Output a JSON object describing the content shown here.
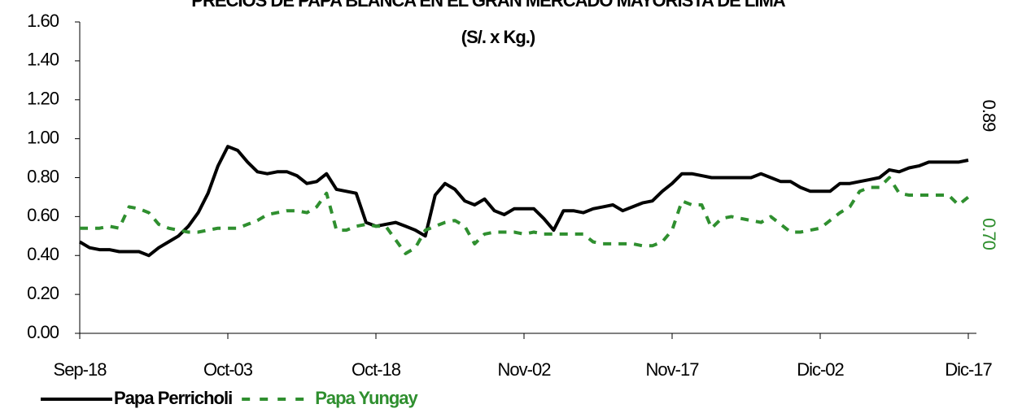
{
  "chart_data": {
    "type": "line",
    "title": "PRECIOS DE PAPA BLANCA EN EL GRAN MERCADO MAYORISTA DE LIMA",
    "subtitle": "(S/. x Kg.)",
    "categories": [
      "Sep-18",
      null,
      null,
      null,
      null,
      null,
      null,
      null,
      null,
      null,
      null,
      null,
      null,
      null,
      null,
      "Oct-03",
      null,
      null,
      null,
      null,
      null,
      null,
      null,
      null,
      null,
      null,
      null,
      null,
      null,
      null,
      "Oct-18",
      null,
      null,
      null,
      null,
      null,
      null,
      null,
      null,
      null,
      null,
      null,
      null,
      null,
      null,
      "Nov-02",
      null,
      null,
      null,
      null,
      null,
      null,
      null,
      null,
      null,
      null,
      null,
      null,
      null,
      null,
      "Nov-17",
      null,
      null,
      null,
      null,
      null,
      null,
      null,
      null,
      null,
      null,
      null,
      null,
      null,
      null,
      "Dic-02",
      null,
      null,
      null,
      null,
      null,
      null,
      null,
      null,
      null,
      null,
      null,
      null,
      null,
      null,
      "Dic-17"
    ],
    "series": [
      {
        "name": "Papa Perricholi",
        "color": "#000000",
        "dash": false,
        "values": [
          0.47,
          0.44,
          0.43,
          0.43,
          0.42,
          0.42,
          0.42,
          0.4,
          0.44,
          0.47,
          0.5,
          0.55,
          0.62,
          0.72,
          0.86,
          0.96,
          0.94,
          0.88,
          0.83,
          0.82,
          0.83,
          0.83,
          0.81,
          0.77,
          0.78,
          0.82,
          0.74,
          0.73,
          0.72,
          0.57,
          0.55,
          0.56,
          0.57,
          0.55,
          0.53,
          0.5,
          0.71,
          0.77,
          0.74,
          0.68,
          0.66,
          0.69,
          0.63,
          0.61,
          0.64,
          0.64,
          0.64,
          0.59,
          0.53,
          0.63,
          0.63,
          0.62,
          0.64,
          0.65,
          0.66,
          0.63,
          0.65,
          0.67,
          0.68,
          0.73,
          0.77,
          0.82,
          0.82,
          0.81,
          0.8,
          0.8,
          0.8,
          0.8,
          0.8,
          0.82,
          0.8,
          0.78,
          0.78,
          0.75,
          0.73,
          0.73,
          0.73,
          0.77,
          0.77,
          0.78,
          0.79,
          0.8,
          0.84,
          0.83,
          0.85,
          0.86,
          0.88,
          0.88,
          0.88,
          0.88,
          0.89
        ],
        "value_labels": [
          null,
          null,
          null,
          null,
          null,
          null,
          null,
          null,
          null,
          null,
          null,
          null,
          null,
          null,
          null,
          null,
          null,
          null,
          null,
          null,
          null,
          null,
          null,
          null,
          null,
          null,
          null,
          null,
          null,
          null,
          null,
          null,
          null,
          null,
          null,
          null,
          null,
          null,
          null,
          null,
          null,
          null,
          null,
          null,
          null,
          null,
          null,
          null,
          null,
          null,
          null,
          null,
          null,
          null,
          null,
          null,
          null,
          null,
          null,
          null,
          null,
          null,
          null,
          null,
          null,
          null,
          null,
          null,
          null,
          null,
          null,
          null,
          null,
          null,
          null,
          null,
          null,
          null,
          null,
          null,
          null,
          null,
          null,
          null,
          null,
          null,
          null,
          null,
          null,
          null,
          "0.89"
        ]
      },
      {
        "name": "Papa Yungay",
        "color": "#2f8f2f",
        "dash": true,
        "values": [
          0.54,
          0.54,
          0.54,
          0.55,
          0.54,
          0.65,
          0.64,
          0.62,
          0.56,
          0.54,
          0.53,
          0.52,
          0.52,
          0.53,
          0.54,
          0.54,
          0.54,
          0.56,
          0.58,
          0.61,
          0.62,
          0.63,
          0.63,
          0.62,
          0.65,
          0.72,
          0.53,
          0.53,
          0.55,
          0.56,
          0.55,
          0.55,
          0.48,
          0.41,
          0.44,
          0.53,
          0.55,
          0.57,
          0.58,
          0.55,
          0.46,
          0.51,
          0.52,
          0.52,
          0.52,
          0.51,
          0.52,
          0.51,
          0.51,
          0.51,
          0.51,
          0.51,
          0.47,
          0.46,
          0.46,
          0.46,
          0.46,
          0.45,
          0.45,
          0.47,
          0.53,
          0.68,
          0.66,
          0.66,
          0.54,
          0.59,
          0.6,
          0.59,
          0.58,
          0.57,
          0.6,
          0.56,
          0.52,
          0.52,
          0.53,
          0.54,
          0.58,
          0.62,
          0.65,
          0.73,
          0.75,
          0.75,
          0.8,
          0.72,
          0.71,
          0.71,
          0.71,
          0.71,
          0.71,
          0.66,
          0.7
        ],
        "value_labels": [
          null,
          null,
          null,
          null,
          null,
          null,
          null,
          null,
          null,
          null,
          null,
          null,
          null,
          null,
          null,
          null,
          null,
          null,
          null,
          null,
          null,
          null,
          null,
          null,
          null,
          null,
          null,
          null,
          null,
          null,
          null,
          null,
          null,
          null,
          null,
          null,
          null,
          null,
          null,
          null,
          null,
          null,
          null,
          null,
          null,
          null,
          null,
          null,
          null,
          null,
          null,
          null,
          null,
          null,
          null,
          null,
          null,
          null,
          null,
          null,
          null,
          null,
          null,
          null,
          null,
          null,
          null,
          null,
          null,
          null,
          null,
          null,
          null,
          null,
          null,
          null,
          null,
          null,
          null,
          null,
          null,
          null,
          null,
          null,
          null,
          null,
          null,
          null,
          null,
          null,
          "0.70"
        ]
      }
    ],
    "ylim": [
      0,
      1.6
    ],
    "yticks": [
      {
        "value": 0,
        "label": "0.00"
      },
      {
        "value": 0.2,
        "label": "0.20"
      },
      {
        "value": 0.4,
        "label": "0.40"
      },
      {
        "value": 0.6,
        "label": "0.60"
      },
      {
        "value": 0.8,
        "label": "0.80"
      },
      {
        "value": 1,
        "label": "1.00"
      },
      {
        "value": 1.2,
        "label": "1.20"
      },
      {
        "value": 1.4,
        "label": "1.40"
      },
      {
        "value": 1.6,
        "label": "1.60"
      }
    ],
    "grid": false,
    "legend": "bottom-left"
  }
}
